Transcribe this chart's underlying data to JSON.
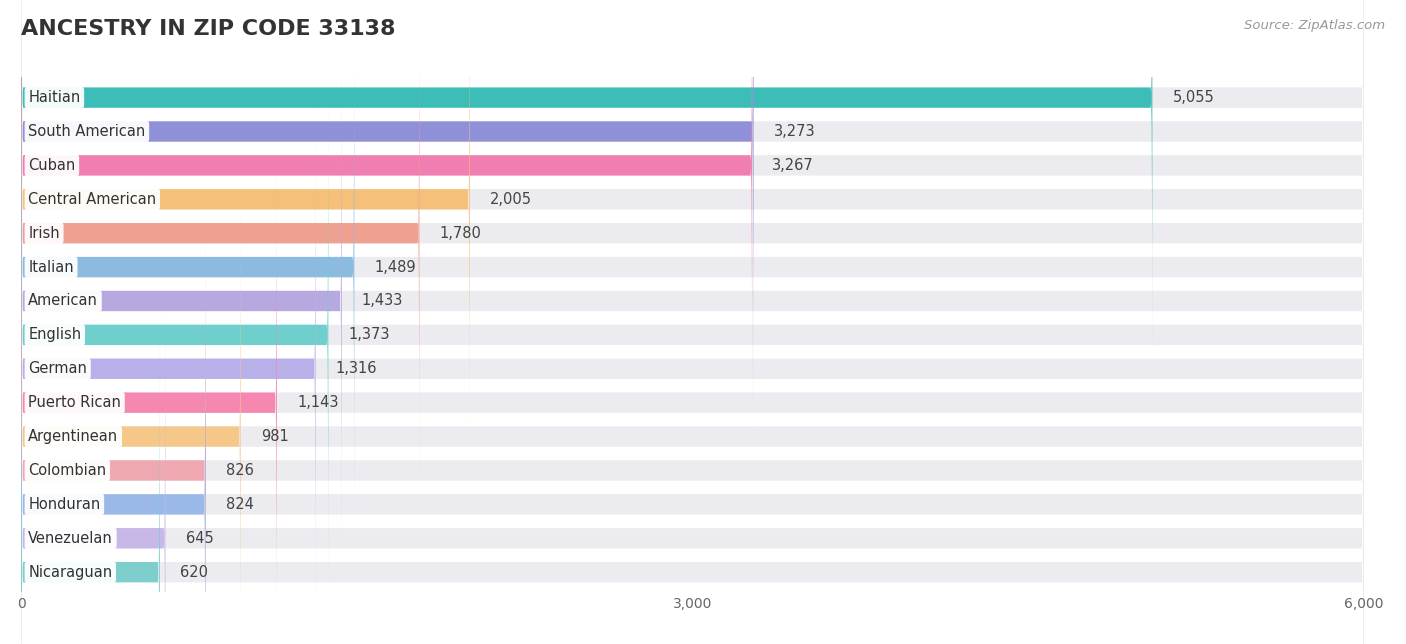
{
  "title": "ANCESTRY IN ZIP CODE 33138",
  "source": "Source: ZipAtlas.com",
  "categories": [
    "Haitian",
    "South American",
    "Cuban",
    "Central American",
    "Irish",
    "Italian",
    "American",
    "English",
    "German",
    "Puerto Rican",
    "Argentinean",
    "Colombian",
    "Honduran",
    "Venezuelan",
    "Nicaraguan"
  ],
  "values": [
    5055,
    3273,
    3267,
    2005,
    1780,
    1489,
    1433,
    1373,
    1316,
    1143,
    981,
    826,
    824,
    645,
    620
  ],
  "bar_colors": [
    "#3dbdb8",
    "#9090d8",
    "#f07eb0",
    "#f5c07a",
    "#f0a090",
    "#8bbcdf",
    "#b8a8e0",
    "#6ecfcc",
    "#b8b0e8",
    "#f587b0",
    "#f5c88a",
    "#f0a8b0",
    "#9ab8e8",
    "#c8b8e8",
    "#7ecece"
  ],
  "bar_bg_color": "#ebebf0",
  "xlim": [
    0,
    6000
  ],
  "xticks": [
    0,
    3000,
    6000
  ],
  "title_fontsize": 16,
  "label_fontsize": 10.5,
  "value_fontsize": 10.5,
  "source_fontsize": 9.5
}
